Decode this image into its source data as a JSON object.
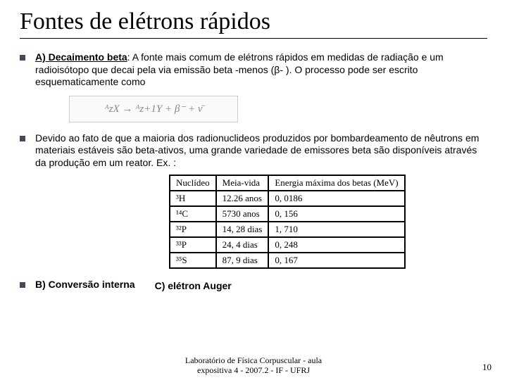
{
  "title": "Fontes de elétrons rápidos",
  "para1_lead": "A) Decaimento beta",
  "para1_rest": ": A fonte mais comum de elétrons rápidos em medidas de radiação e um radioisótopo que decai pela via emissão beta -menos (β- ). O processo pode ser escrito esquematicamente como",
  "formula_text": "ᴬzX → ᴬz+1Y + β⁻ + ν̄",
  "para2": "Devido ao fato de que a maioria dos radionuclideos produzidos por bombardeamento de nêutrons em materiais estáveis são beta-ativos, uma grande variedade de emissores beta são disponíveis através da produção em um reator. Ex. :",
  "table": {
    "headers": [
      "Nuclídeo",
      "Meia-vida",
      "Energia máxima dos betas (MeV)"
    ],
    "rows": [
      [
        "³H",
        "12.26 anos",
        "0, 0186"
      ],
      [
        "¹⁴C",
        "5730 anos",
        "0, 156"
      ],
      [
        "³²P",
        "14, 28 dias",
        "1, 710"
      ],
      [
        "³³P",
        "24, 4 dias",
        "0, 248"
      ],
      [
        "³⁵S",
        "87, 9 dias",
        "0, 167"
      ]
    ]
  },
  "section_b": "B) Conversão interna",
  "section_c": "C) elétron Auger",
  "footer_l1": "Laboratório de Física Corpuscular  - aula",
  "footer_l2": "expositiva 4 - 2007.2 -  IF - UFRJ",
  "page_num": "10"
}
